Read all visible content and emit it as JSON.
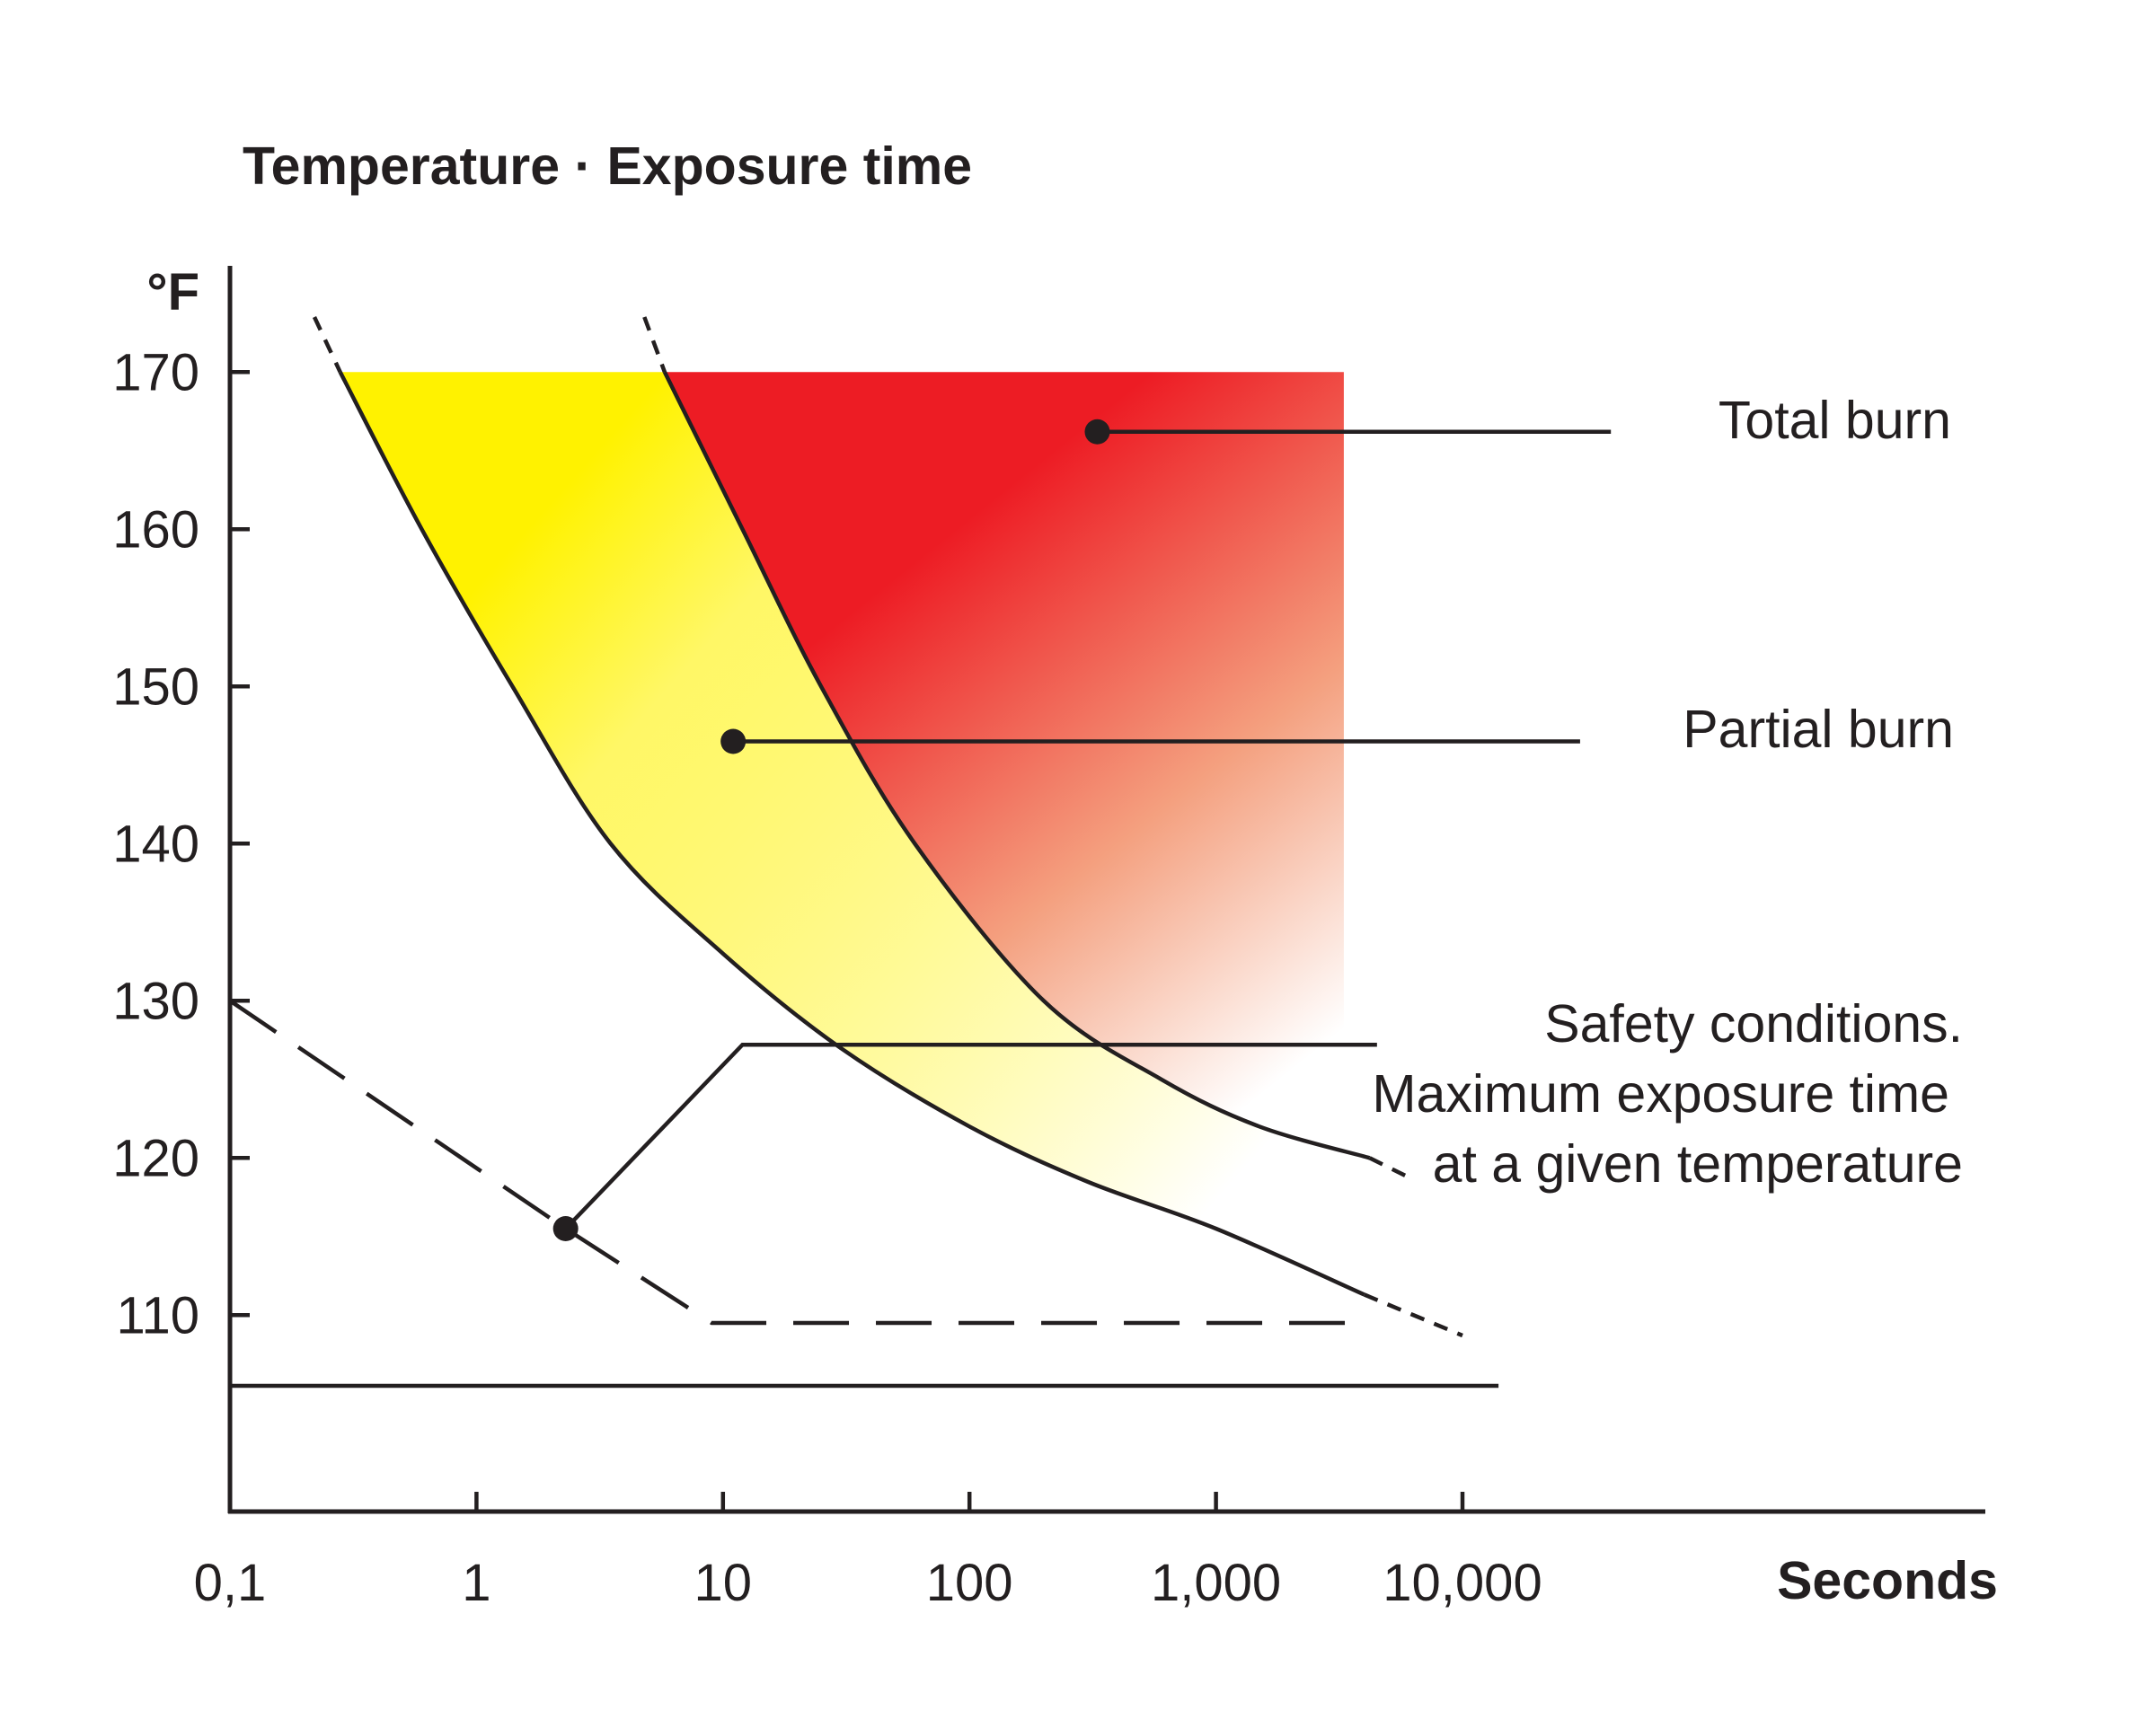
{
  "chart_data": {
    "type": "line",
    "title": "Temperature · Exposure time",
    "ylabel": "°F",
    "xlabel": "Seconds",
    "x_scale": "log",
    "xlim": [
      0.1,
      170000
    ],
    "ylim": [
      97.5,
      175
    ],
    "x_ticks": [
      {
        "value": 0.1,
        "label": "0,1"
      },
      {
        "value": 1,
        "label": "1"
      },
      {
        "value": 10,
        "label": "10"
      },
      {
        "value": 100,
        "label": "100"
      },
      {
        "value": 1000,
        "label": "1,000"
      },
      {
        "value": 10000,
        "label": "10,000"
      }
    ],
    "y_ticks": [
      {
        "value": 110,
        "label": "110"
      },
      {
        "value": 120,
        "label": "120"
      },
      {
        "value": 130,
        "label": "130"
      },
      {
        "value": 140,
        "label": "140"
      },
      {
        "value": 150,
        "label": "150"
      },
      {
        "value": 160,
        "label": "160"
      },
      {
        "value": 170,
        "label": "170"
      }
    ],
    "series": [
      {
        "key": "partial_burn_threshold",
        "style": "solid",
        "points": [
          [
            0.28,
            170
          ],
          [
            0.6,
            160
          ],
          [
            1.4,
            150
          ],
          [
            3.5,
            140
          ],
          [
            10,
            133
          ],
          [
            30,
            127
          ],
          [
            100,
            122
          ],
          [
            300,
            118.5
          ],
          [
            1000,
            115.5
          ],
          [
            4000,
            111.3
          ]
        ],
        "dashed_start": [
          [
            0.22,
            173.5
          ],
          [
            0.28,
            170
          ]
        ],
        "dashed_end": [
          [
            4000,
            111.3
          ],
          [
            10000,
            108.7
          ]
        ]
      },
      {
        "key": "total_burn_threshold",
        "style": "solid",
        "points": [
          [
            5.8,
            170
          ],
          [
            12,
            160
          ],
          [
            25,
            150
          ],
          [
            60,
            140
          ],
          [
            200,
            130
          ],
          [
            600,
            125
          ],
          [
            1500,
            122
          ],
          [
            4200,
            120
          ]
        ],
        "dashed_start": [
          [
            4.8,
            173.5
          ],
          [
            5.8,
            170
          ]
        ],
        "dashed_end": [
          [
            4200,
            120
          ],
          [
            6000,
            118.8
          ]
        ]
      },
      {
        "key": "safety_limit",
        "style": "dashed",
        "points": [
          [
            0.1,
            130
          ],
          [
            2.3,
            115.5
          ],
          [
            9,
            109.5
          ],
          [
            4000,
            109.5
          ]
        ]
      },
      {
        "key": "baseline",
        "style": "solid",
        "points": [
          [
            0.1,
            105.5
          ],
          [
            14000,
            105.5
          ]
        ]
      }
    ],
    "regions": [
      {
        "key": "partial_burn",
        "color": "#fff200"
      },
      {
        "key": "total_burn",
        "color": "#ed1c24",
        "right_x": 3300,
        "top_y": 170
      }
    ],
    "annotations": [
      {
        "key": "total",
        "label": "Total burn",
        "point": [
          330,
          166.2
        ],
        "line_to_x": 40000
      },
      {
        "key": "partial",
        "label": "Partial burn",
        "point": [
          11,
          146.5
        ],
        "line_to_x": 30000
      },
      {
        "key": "safety",
        "label_lines": [
          "Safety conditions.",
          "Maximum exposure time",
          "at a given temperature"
        ],
        "point": [
          2.3,
          115.5
        ],
        "elbow": [
          12,
          127.2
        ],
        "line_to_x": 4500
      }
    ],
    "colors": {
      "axis": "#231f20",
      "partial_burn": "#fff200",
      "total_burn": "#ed1c24",
      "total_burn_fade": "#f4a07f"
    }
  }
}
